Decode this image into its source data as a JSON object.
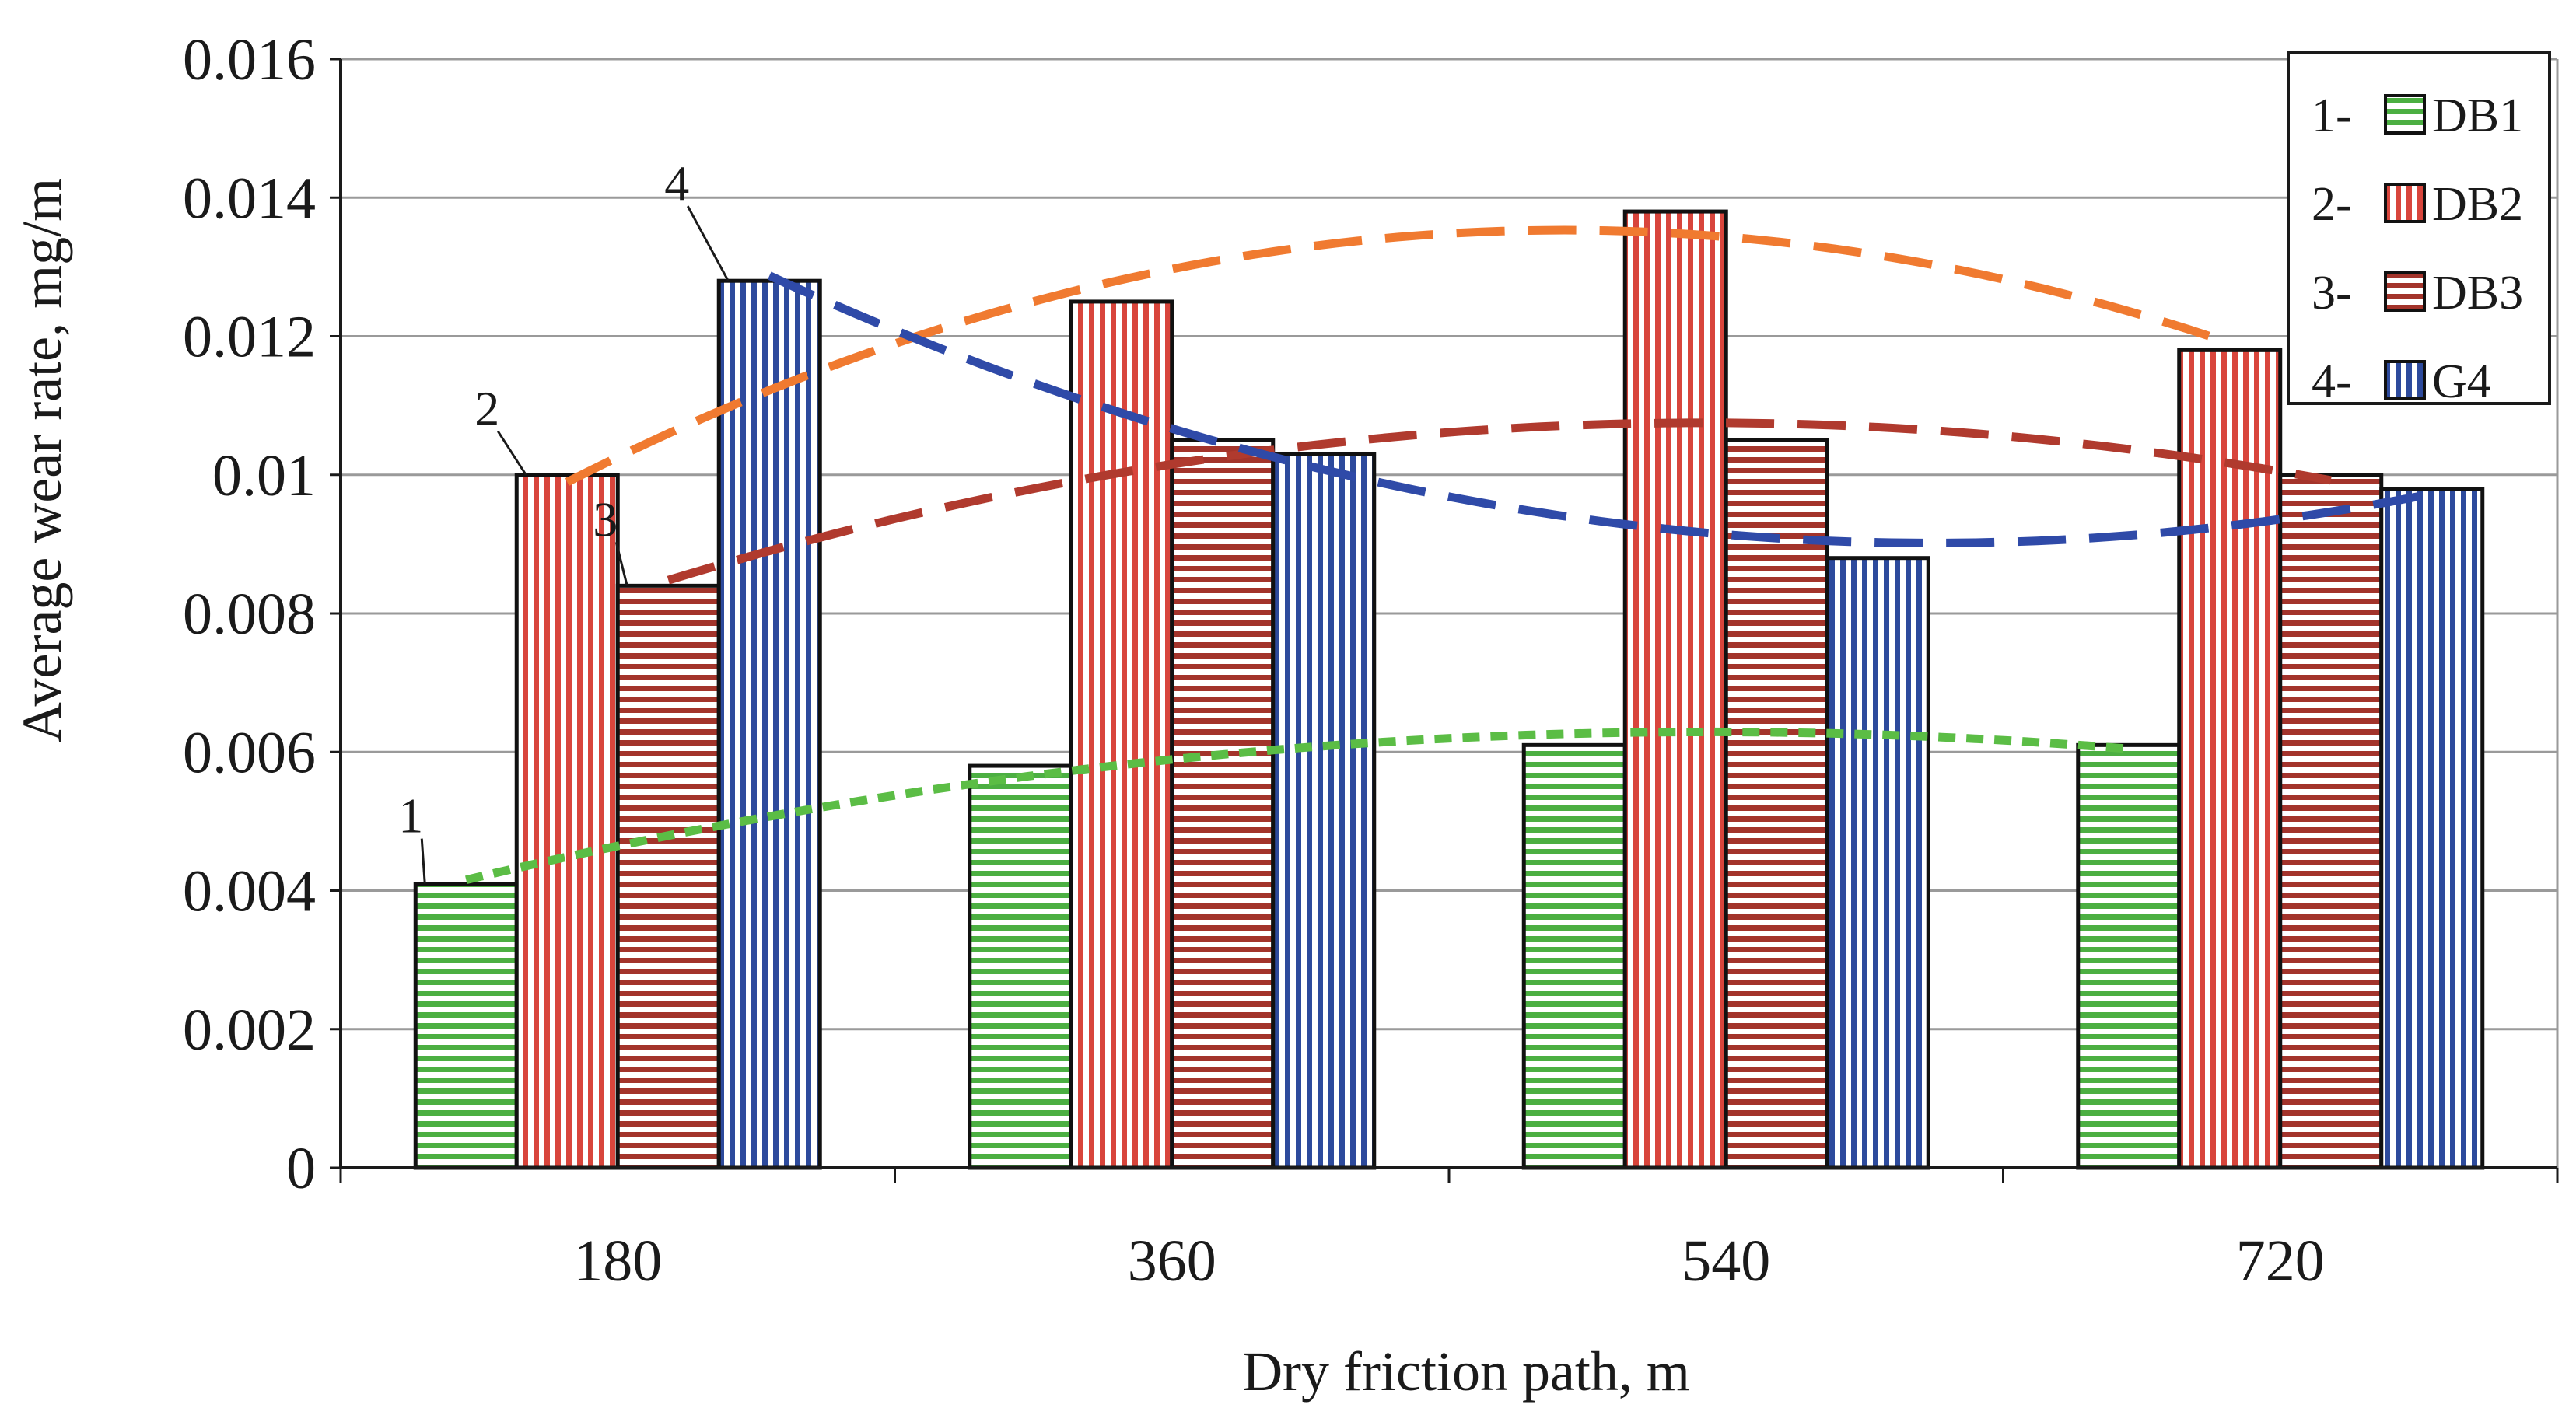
{
  "chart_data": {
    "type": "bar",
    "title": "",
    "xlabel": "Dry friction path, m",
    "ylabel": "Average wear rate, mg/m",
    "categories": [
      "180",
      "360",
      "540",
      "720"
    ],
    "ylim": [
      0,
      0.016
    ],
    "yticks": [
      0,
      0.002,
      0.004,
      0.006,
      0.008,
      0.01,
      0.012,
      0.014,
      0.016
    ],
    "ytick_labels": [
      "0",
      "0.002",
      "0.004",
      "0.006",
      "0.008",
      "0.01",
      "0.012",
      "0.014",
      "0.016"
    ],
    "grid": "horizontal",
    "legend_position": "top-right",
    "series": [
      {
        "id": "1",
        "prefix": "1-",
        "name": "DB1",
        "pattern": "horizontal",
        "color": "#4caf42",
        "trend_color": "#5bbd45",
        "trend_style": "dotted",
        "values": [
          0.0041,
          0.0058,
          0.0061,
          0.0061
        ]
      },
      {
        "id": "2",
        "prefix": "2-",
        "name": "DB2",
        "pattern": "vertical",
        "color": "#d8453c",
        "trend_color": "#f07a30",
        "trend_style": "dashed",
        "values": [
          0.01,
          0.0125,
          0.0138,
          0.0118
        ]
      },
      {
        "id": "3",
        "prefix": "3-",
        "name": "DB3",
        "pattern": "horizontal",
        "color": "#a3342b",
        "trend_color": "#b03a2e",
        "trend_style": "dashed",
        "values": [
          0.0084,
          0.0105,
          0.0105,
          0.01
        ]
      },
      {
        "id": "4",
        "prefix": "4-",
        "name": "G4",
        "pattern": "vertical",
        "color": "#2d4a9c",
        "trend_color": "#2f4aa8",
        "trend_style": "dashed",
        "values": [
          0.0128,
          0.0103,
          0.0088,
          0.0098
        ]
      }
    ],
    "annotations": [
      {
        "text": "1",
        "series": 0,
        "category": 0
      },
      {
        "text": "2",
        "series": 1,
        "category": 0
      },
      {
        "text": "3",
        "series": 2,
        "category": 0
      },
      {
        "text": "4",
        "series": 3,
        "category": 0
      }
    ]
  }
}
